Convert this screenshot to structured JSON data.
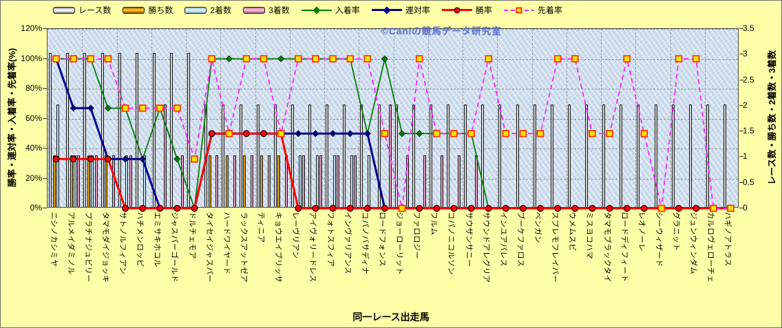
{
  "watermark": "©Caniの競馬データ研究室",
  "legend": [
    {
      "label": "レース数",
      "swatch": "bar-white"
    },
    {
      "label": "勝ち数",
      "swatch": "bar-orange"
    },
    {
      "label": "2着数",
      "swatch": "bar-blue"
    },
    {
      "label": "3着数",
      "swatch": "bar-pink"
    },
    {
      "label": "入着率",
      "swatch": "line-green-diamond"
    },
    {
      "label": "連対率",
      "swatch": "line-navy-diamond"
    },
    {
      "label": "勝率",
      "swatch": "line-red-circle"
    },
    {
      "label": "先着率",
      "swatch": "line-magenta-square"
    }
  ],
  "axes": {
    "left": {
      "title": "勝率・連対率・入着率・先着率(%)",
      "ticks": [
        "0%",
        "20%",
        "40%",
        "60%",
        "80%",
        "100%",
        "120%"
      ]
    },
    "right": {
      "title": "レース数・勝ち数・2着数・3着数",
      "ticks": [
        "0",
        "0.5",
        "1",
        "1.5",
        "2",
        "2.5",
        "3",
        "3.5"
      ]
    },
    "x": {
      "title": "同一レース出走馬"
    }
  },
  "colors": {
    "background": "#ffffa8",
    "plot_background": "#cddced",
    "race_bar": "#ffffff",
    "win_bar": "#fcae00",
    "second_bar": "#cfebf7",
    "third_bar": "#f0a2c4",
    "placing_line": "#008000",
    "quinella_line": "#000090",
    "winrate_line": "#ff0000",
    "ahead_line": "#ff22ff",
    "square_marker_fill": "#ffe400",
    "square_marker_border": "#ff3000",
    "watermark_text": "#5a6bd0"
  },
  "chart_data": {
    "type": "bar+line combo",
    "title": "",
    "xlabel": "同一レース出走馬",
    "left_axis": {
      "label": "勝率・連対率・入着率・先着率(%)",
      "min": 0,
      "max": 120,
      "step": 20,
      "unit": "%"
    },
    "right_axis": {
      "label": "レース数・勝ち数・2着数・3着数",
      "min": 0,
      "max": 3.5,
      "step": 0.5
    },
    "grid": "horizontal dashed every 20%, vertical dashed every 2 categories",
    "legend_position": "top",
    "categories": [
      "ニシノカシミヤ",
      "アルメイダミノル",
      "プラチナジュビリー",
      "タマモダイジョッキ",
      "サトノルフィアン",
      "ハチメンロッピ",
      "エミサキホコル",
      "ジャスパーゴールド",
      "ドルチェモア",
      "タイセイジャスパー",
      "ハードワイヤード",
      "ラックスアットゼア",
      "ティニア",
      "キョウエイブリッサ",
      "レーヴリアン",
      "アイヴォリードレス",
      "フォトスフィア",
      "インヴァリアンス",
      "コパノバサディナ",
      "ロードフォンス",
      "ジョーローリット",
      "ファロロジー",
      "フルム",
      "コパノニコルソン",
      "サウザンサニー",
      "サウンドアレグリア",
      "インユアパレス",
      "ブーケファロス",
      "ベンガン",
      "スプレモフレイバー",
      "ウメムスビ",
      "ミスヨコハマ",
      "タマモブラックタイ",
      "ロードディフィート",
      "レオノーレ",
      "シーウィザード",
      "グラニット",
      "ジュンウィンダム",
      "カルロヴェローチェ",
      "ハギノアトラス"
    ],
    "series": [
      {
        "name": "レース数",
        "type": "bar",
        "axis": "right",
        "style": "bar-white",
        "values": [
          3,
          3,
          3,
          3,
          3,
          3,
          3,
          3,
          3,
          2,
          2,
          2,
          2,
          2,
          2,
          2,
          2,
          2,
          2,
          2,
          2,
          2,
          2,
          2,
          2,
          2,
          2,
          2,
          2,
          2,
          2,
          2,
          2,
          2,
          2,
          2,
          2,
          2,
          2,
          2
        ]
      },
      {
        "name": "勝ち数",
        "type": "bar",
        "axis": "right",
        "style": "bar-orange",
        "values": [
          1,
          1,
          1,
          1,
          0,
          0,
          0,
          0,
          0,
          1,
          1,
          1,
          1,
          1,
          0,
          0,
          0,
          0,
          0,
          0,
          0,
          0,
          0,
          0,
          0,
          0,
          0,
          0,
          0,
          0,
          0,
          0,
          0,
          0,
          0,
          0,
          0,
          0,
          0,
          0
        ]
      },
      {
        "name": "2着数",
        "type": "bar",
        "axis": "right",
        "style": "bar-blue",
        "values": [
          2,
          1,
          1,
          0,
          1,
          1,
          0,
          0,
          0,
          0,
          0,
          0,
          0,
          0,
          1,
          1,
          1,
          1,
          1,
          0,
          0,
          0,
          0,
          0,
          0,
          0,
          0,
          0,
          0,
          0,
          0,
          0,
          0,
          0,
          0,
          0,
          0,
          0,
          0,
          0
        ]
      },
      {
        "name": "3着数",
        "type": "bar",
        "axis": "right",
        "style": "bar-pink",
        "values": [
          0,
          1,
          1,
          1,
          1,
          0,
          2,
          1,
          0,
          1,
          1,
          1,
          1,
          1,
          1,
          1,
          1,
          1,
          0,
          2,
          1,
          1,
          1,
          1,
          1,
          0,
          0,
          0,
          0,
          0,
          0,
          0,
          0,
          0,
          0,
          0,
          0,
          0,
          0,
          0
        ]
      },
      {
        "name": "入着率",
        "type": "line",
        "axis": "left",
        "color": "#008000",
        "width": 1.8,
        "marker": "diamond",
        "values": [
          100,
          100,
          100,
          67,
          67,
          33,
          67,
          33,
          0,
          100,
          100,
          100,
          100,
          100,
          100,
          100,
          100,
          100,
          50,
          100,
          50,
          50,
          50,
          50,
          50,
          0,
          0,
          0,
          0,
          0,
          0,
          0,
          0,
          0,
          0,
          0,
          0,
          0,
          0,
          0
        ]
      },
      {
        "name": "連対率",
        "type": "line",
        "axis": "left",
        "color": "#000090",
        "width": 3,
        "marker": "diamond",
        "values": [
          100,
          67,
          67,
          33,
          33,
          33,
          0,
          0,
          0,
          50,
          50,
          50,
          50,
          50,
          50,
          50,
          50,
          50,
          50,
          0,
          0,
          0,
          0,
          0,
          0,
          0,
          0,
          0,
          0,
          0,
          0,
          0,
          0,
          0,
          0,
          0,
          0,
          0,
          0,
          0
        ]
      },
      {
        "name": "勝率",
        "type": "line",
        "axis": "left",
        "color": "#ff0000",
        "width": 3,
        "marker": "circle",
        "values": [
          33,
          33,
          33,
          33,
          0,
          0,
          0,
          0,
          0,
          50,
          50,
          50,
          50,
          50,
          0,
          0,
          0,
          0,
          0,
          0,
          0,
          0,
          0,
          0,
          0,
          0,
          0,
          0,
          0,
          0,
          0,
          0,
          0,
          0,
          0,
          0,
          0,
          0,
          0,
          0
        ]
      },
      {
        "name": "先着率",
        "type": "line",
        "axis": "left",
        "color": "#ff22ff",
        "width": 1.8,
        "marker": "square",
        "dash": true,
        "values": [
          100,
          100,
          100,
          100,
          67,
          67,
          67,
          67,
          33,
          100,
          50,
          100,
          100,
          50,
          100,
          100,
          100,
          100,
          100,
          50,
          0,
          100,
          50,
          50,
          50,
          100,
          50,
          50,
          50,
          100,
          100,
          50,
          50,
          100,
          50,
          0,
          100,
          100,
          0,
          0
        ]
      }
    ]
  }
}
